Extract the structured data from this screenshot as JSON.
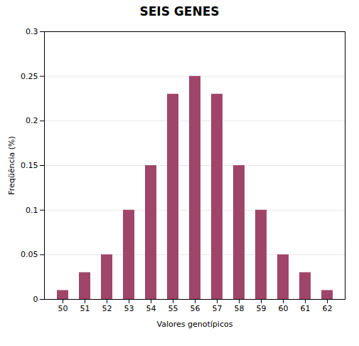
{
  "chart_data": {
    "type": "bar",
    "title": "SEIS GENES",
    "xlabel": "Valores genotípicos",
    "ylabel": "Freqüência (%)",
    "categories": [
      50,
      51,
      52,
      53,
      54,
      55,
      56,
      57,
      58,
      59,
      60,
      61,
      62
    ],
    "values": [
      0.01,
      0.03,
      0.05,
      0.1,
      0.15,
      0.23,
      0.25,
      0.23,
      0.15,
      0.1,
      0.05,
      0.03,
      0.01
    ],
    "color": "#A0456A",
    "ylim": [
      0,
      0.3
    ],
    "yticks": [
      0,
      0.05,
      0.1,
      0.15,
      0.2,
      0.25,
      0.3
    ],
    "grid": true
  }
}
